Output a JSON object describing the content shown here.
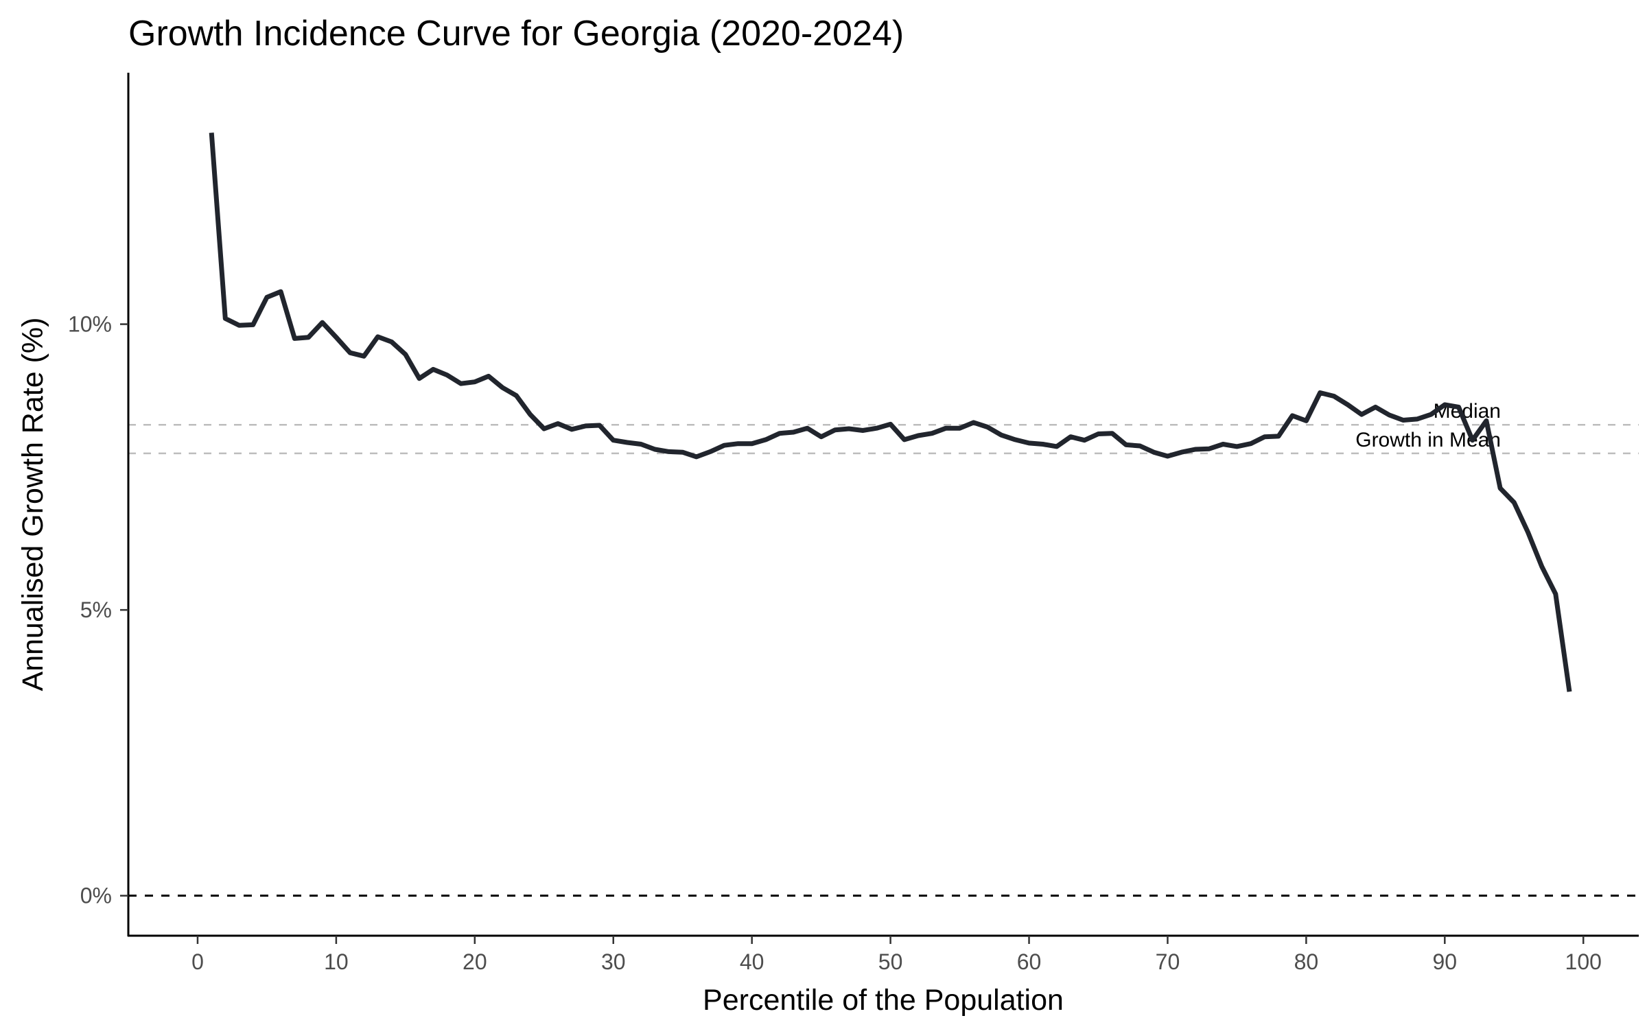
{
  "chart_data": {
    "type": "line",
    "title": "Growth Incidence Curve for Georgia (2020-2024)",
    "xlabel": "Percentile of the Population",
    "ylabel": "Annualised Growth Rate (%)",
    "xlim": [
      -5,
      104
    ],
    "ylim": [
      -0.7,
      14.4
    ],
    "x_ticks": [
      0,
      10,
      20,
      30,
      40,
      50,
      60,
      70,
      80,
      90,
      100
    ],
    "x_tick_labels": [
      "0",
      "10",
      "20",
      "30",
      "40",
      "50",
      "60",
      "70",
      "80",
      "90",
      "100"
    ],
    "y_ticks": [
      0,
      5,
      10
    ],
    "y_tick_labels": [
      "0%",
      "5%",
      "10%"
    ],
    "grid": false,
    "series": [
      {
        "color": "#21252d",
        "x": [
          1,
          2,
          3,
          4,
          5,
          6,
          7,
          8,
          9,
          10,
          11,
          12,
          13,
          14,
          15,
          16,
          17,
          18,
          19,
          20,
          21,
          22,
          23,
          24,
          25,
          26,
          27,
          28,
          29,
          30,
          31,
          32,
          33,
          34,
          35,
          36,
          37,
          38,
          39,
          40,
          41,
          42,
          43,
          44,
          45,
          46,
          47,
          48,
          49,
          50,
          51,
          52,
          53,
          54,
          55,
          56,
          57,
          58,
          59,
          60,
          61,
          62,
          63,
          64,
          65,
          66,
          67,
          68,
          69,
          70,
          71,
          72,
          73,
          74,
          75,
          76,
          77,
          78,
          79,
          80,
          81,
          82,
          83,
          84,
          85,
          86,
          87,
          88,
          89,
          90,
          91,
          92,
          93,
          94,
          95,
          96,
          97,
          98,
          99
        ],
        "values": [
          13.35,
          10.1,
          9.98,
          9.99,
          10.47,
          10.57,
          9.75,
          9.77,
          10.03,
          9.77,
          9.5,
          9.44,
          9.78,
          9.69,
          9.47,
          9.05,
          9.21,
          9.11,
          8.96,
          8.99,
          9.09,
          8.89,
          8.75,
          8.42,
          8.17,
          8.26,
          8.16,
          8.22,
          8.23,
          7.97,
          7.93,
          7.9,
          7.81,
          7.77,
          7.76,
          7.68,
          7.77,
          7.88,
          7.91,
          7.91,
          7.98,
          8.09,
          8.11,
          8.18,
          8.03,
          8.15,
          8.17,
          8.14,
          8.18,
          8.25,
          7.98,
          8.05,
          8.09,
          8.18,
          8.18,
          8.28,
          8.2,
          8.06,
          7.98,
          7.92,
          7.9,
          7.86,
          8.03,
          7.97,
          8.08,
          8.09,
          7.89,
          7.87,
          7.76,
          7.69,
          7.76,
          7.81,
          7.82,
          7.9,
          7.86,
          7.91,
          8.03,
          8.04,
          8.4,
          8.31,
          8.8,
          8.74,
          8.59,
          8.42,
          8.55,
          8.41,
          8.32,
          8.34,
          8.42,
          8.59,
          8.55,
          7.97,
          8.31,
          7.13,
          6.88,
          6.36,
          5.76,
          5.28,
          3.57
        ]
      }
    ],
    "reference_lines": [
      {
        "value": 0,
        "style": "dashed",
        "color": "#000000"
      },
      {
        "value": 8.24,
        "label": "Median",
        "style": "dashed",
        "color": "#bdbdbd"
      },
      {
        "value": 7.74,
        "label": "Growth in Mean",
        "style": "dashed",
        "color": "#bdbdbd"
      }
    ]
  }
}
